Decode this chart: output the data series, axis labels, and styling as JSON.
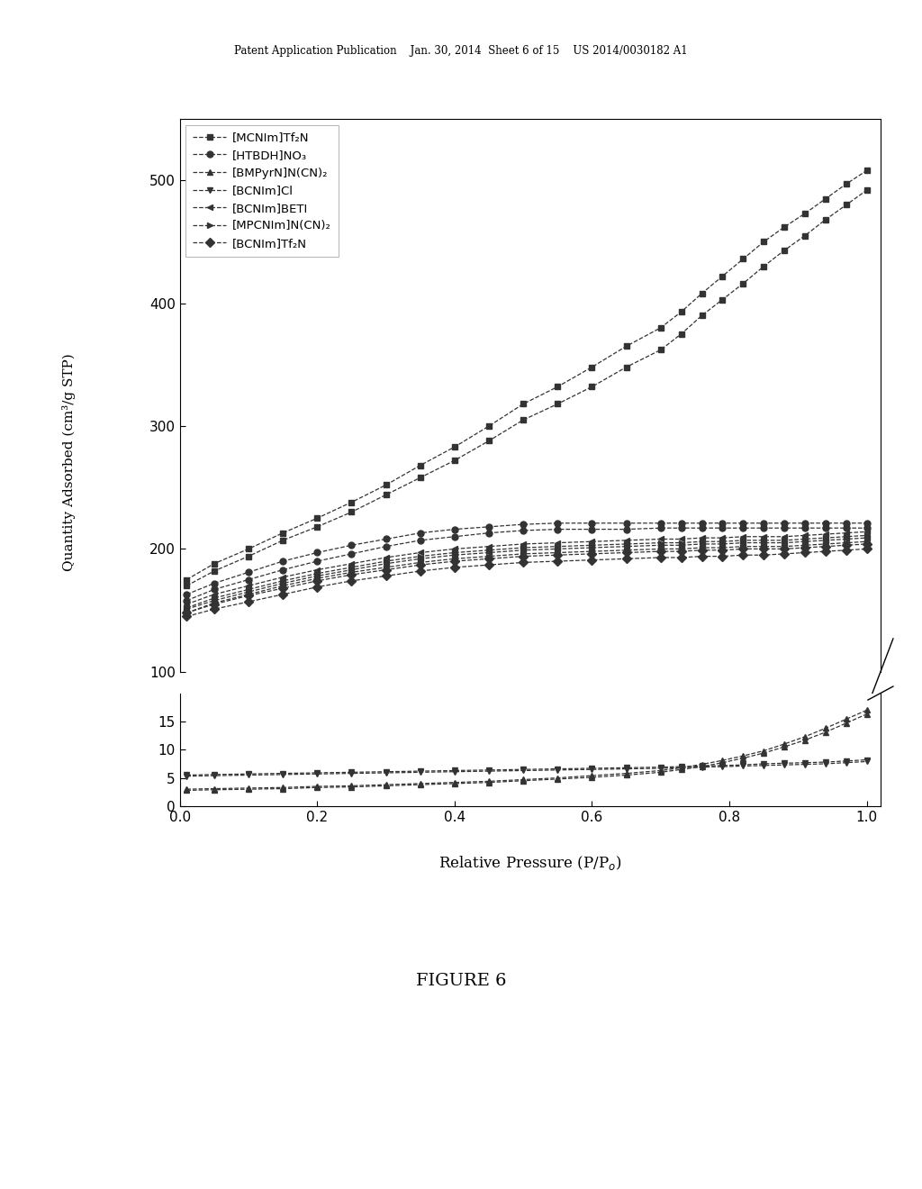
{
  "header_text": "Patent Application Publication    Jan. 30, 2014  Sheet 6 of 15    US 2014/0030182 A1",
  "figure_label": "FIGURE 6",
  "xlabel": "Relative Pressure (P/P",
  "xlabel_sub": "o",
  "ylabel": "Quantity Adsorbed (cm³/g STP)",
  "background_color": "#ffffff",
  "series_upper": [
    {
      "label": "[MCNIm]Tf₂N",
      "marker": "s",
      "adsorb": [
        175,
        188,
        200,
        213,
        225,
        238,
        252,
        268,
        283,
        300,
        318,
        332,
        348,
        365,
        380,
        393,
        408,
        422,
        436,
        450,
        462,
        473,
        485,
        497,
        508
      ],
      "desorb": [
        170,
        182,
        194,
        207,
        218,
        230,
        244,
        258,
        272,
        288,
        305,
        318,
        332,
        348,
        362,
        375,
        390,
        403,
        416,
        430,
        443,
        455,
        468,
        480,
        492
      ]
    },
    {
      "label": "[HTBDH]NO₃",
      "marker": "o",
      "adsorb": [
        163,
        172,
        181,
        190,
        197,
        203,
        208,
        213,
        216,
        218,
        220,
        221,
        221,
        221,
        221,
        221,
        221,
        221,
        221,
        221,
        221,
        221,
        221,
        221,
        221
      ],
      "desorb": [
        158,
        167,
        175,
        183,
        190,
        196,
        202,
        207,
        210,
        213,
        215,
        216,
        216,
        216,
        217,
        217,
        217,
        217,
        217,
        217,
        217,
        217,
        217,
        217,
        217
      ]
    },
    {
      "label": "[BCNIm]BETI",
      "marker": "<",
      "adsorb": [
        155,
        163,
        170,
        177,
        183,
        188,
        193,
        197,
        200,
        202,
        204,
        205,
        206,
        207,
        208,
        208,
        209,
        209,
        210,
        210,
        210,
        211,
        212,
        213,
        214
      ],
      "desorb": [
        151,
        158,
        165,
        172,
        178,
        183,
        188,
        192,
        195,
        197,
        199,
        200,
        201,
        202,
        203,
        203,
        204,
        204,
        205,
        205,
        205,
        206,
        207,
        208,
        209
      ]
    },
    {
      "label": "[MPCNIm]N(CN)₂",
      "marker": ">",
      "adsorb": [
        152,
        160,
        167,
        174,
        180,
        185,
        190,
        194,
        197,
        199,
        201,
        202,
        203,
        204,
        205,
        205,
        206,
        206,
        207,
        207,
        207,
        208,
        209,
        210,
        211
      ],
      "desorb": [
        148,
        156,
        163,
        170,
        176,
        181,
        185,
        189,
        192,
        194,
        196,
        197,
        198,
        199,
        200,
        200,
        201,
        201,
        202,
        202,
        202,
        203,
        204,
        205,
        206
      ]
    },
    {
      "label": "[BCNIm]Tf₂N",
      "marker": "D",
      "adsorb": [
        148,
        155,
        162,
        168,
        174,
        179,
        183,
        187,
        190,
        192,
        194,
        195,
        196,
        197,
        198,
        198,
        199,
        199,
        200,
        200,
        200,
        201,
        202,
        203,
        204
      ],
      "desorb": [
        145,
        151,
        157,
        163,
        169,
        174,
        178,
        182,
        185,
        187,
        189,
        190,
        191,
        192,
        193,
        193,
        194,
        194,
        195,
        195,
        196,
        197,
        198,
        199,
        200
      ]
    }
  ],
  "series_lower": [
    {
      "label": "[BMPyrN]N(CN)₂",
      "marker": "^",
      "adsorb": [
        3.0,
        3.1,
        3.2,
        3.3,
        3.5,
        3.6,
        3.8,
        4.0,
        4.2,
        4.4,
        4.7,
        5.0,
        5.4,
        5.8,
        6.3,
        6.8,
        7.4,
        8.1,
        8.9,
        9.8,
        11.0,
        12.3,
        13.8,
        15.4,
        17.0
      ],
      "desorb": [
        2.8,
        2.9,
        3.0,
        3.1,
        3.3,
        3.4,
        3.6,
        3.8,
        4.0,
        4.2,
        4.5,
        4.8,
        5.1,
        5.5,
        6.0,
        6.5,
        7.0,
        7.7,
        8.5,
        9.4,
        10.5,
        11.7,
        13.1,
        14.7,
        16.3
      ]
    },
    {
      "label": "[BCNIm]Cl",
      "marker": "v",
      "adsorb": [
        5.5,
        5.6,
        5.7,
        5.8,
        5.9,
        6.0,
        6.1,
        6.2,
        6.3,
        6.4,
        6.5,
        6.6,
        6.7,
        6.8,
        6.9,
        7.0,
        7.1,
        7.2,
        7.3,
        7.5,
        7.6,
        7.7,
        7.8,
        8.0,
        8.2
      ],
      "desorb": [
        5.3,
        5.4,
        5.5,
        5.6,
        5.7,
        5.8,
        5.9,
        6.0,
        6.1,
        6.2,
        6.3,
        6.4,
        6.5,
        6.6,
        6.7,
        6.8,
        6.9,
        7.0,
        7.1,
        7.2,
        7.3,
        7.4,
        7.5,
        7.7,
        7.9
      ]
    }
  ],
  "x_values": [
    0.01,
    0.05,
    0.1,
    0.15,
    0.2,
    0.25,
    0.3,
    0.35,
    0.4,
    0.45,
    0.5,
    0.55,
    0.6,
    0.65,
    0.7,
    0.73,
    0.76,
    0.79,
    0.82,
    0.85,
    0.88,
    0.91,
    0.94,
    0.97,
    1.0
  ],
  "ylim_upper": [
    100,
    550
  ],
  "ylim_lower": [
    0,
    20
  ],
  "yticks_upper": [
    100,
    200,
    300,
    400,
    500
  ],
  "yticks_lower": [
    0,
    5,
    10,
    15
  ],
  "xlim": [
    0.0,
    1.02
  ],
  "xticks": [
    0.0,
    0.2,
    0.4,
    0.6,
    0.8,
    1.0
  ],
  "legend_order": [
    "[MCNIm]Tf₂N",
    "[HTBDH]NO₃",
    "[BMPyrN]N(CN)₂",
    "[BCNIm]Cl",
    "[BCNIm]BETI",
    "[MPCNIm]N(CN)₂",
    "[BCNIm]Tf₂N"
  ],
  "legend_markers": {
    "[MCNIm]Tf₂N": "s",
    "[HTBDH]NO₃": "o",
    "[BMPyrN]N(CN)₂": "^",
    "[BCNIm]Cl": "v",
    "[BCNIm]BETI": "<",
    "[MPCNIm]N(CN)₂": ">",
    "[BCNIm]Tf₂N": "D"
  }
}
